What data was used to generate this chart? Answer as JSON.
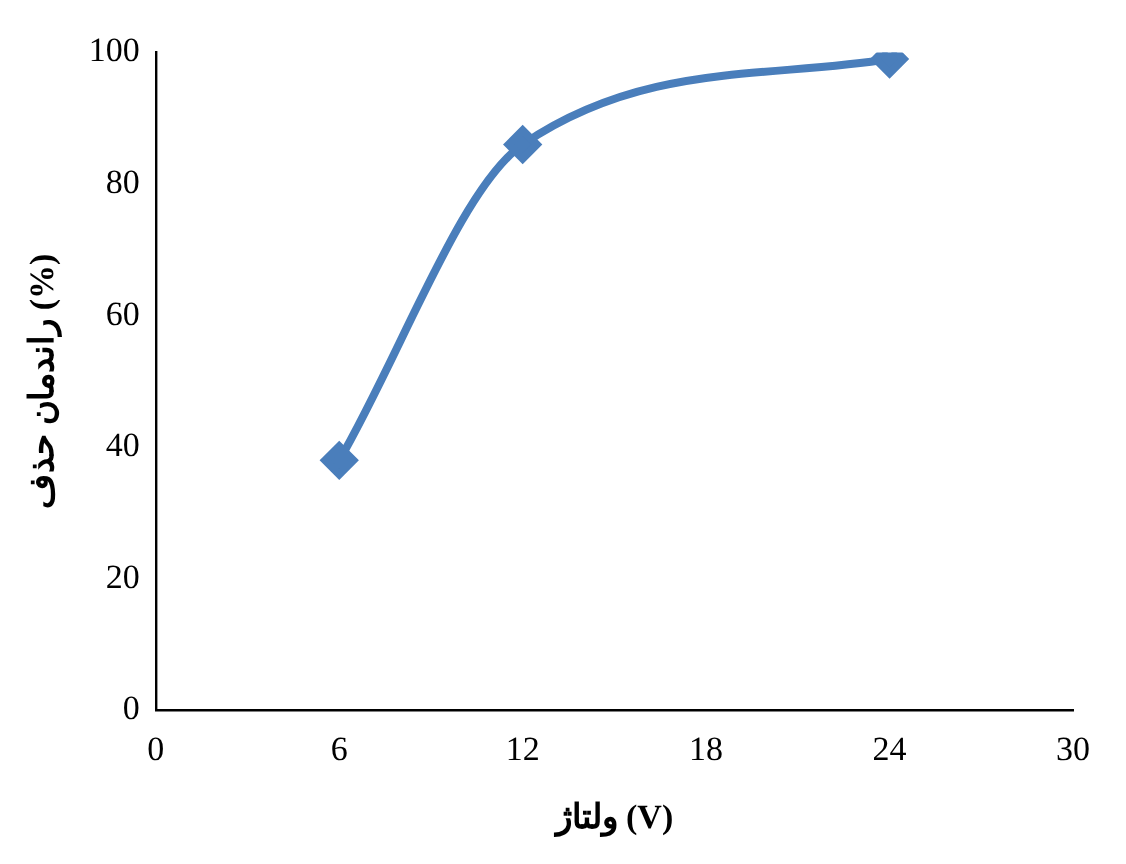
{
  "chart_data": {
    "type": "line",
    "xlabel": "ولتاژ (V)",
    "ylabel": "راندمان حذف (%)",
    "x": [
      6,
      12,
      24
    ],
    "series": [
      {
        "color": "#4a7ebb",
        "values": [
          38,
          86,
          99
        ]
      }
    ],
    "xlim": [
      0,
      30
    ],
    "xticks": [
      0,
      6,
      12,
      18,
      24,
      30
    ],
    "ylim": [
      0,
      100
    ],
    "yticks": [
      0,
      20,
      40,
      60,
      80,
      100
    ],
    "grid": false,
    "legend": false,
    "marker": "diamond",
    "line_style": "solid"
  }
}
